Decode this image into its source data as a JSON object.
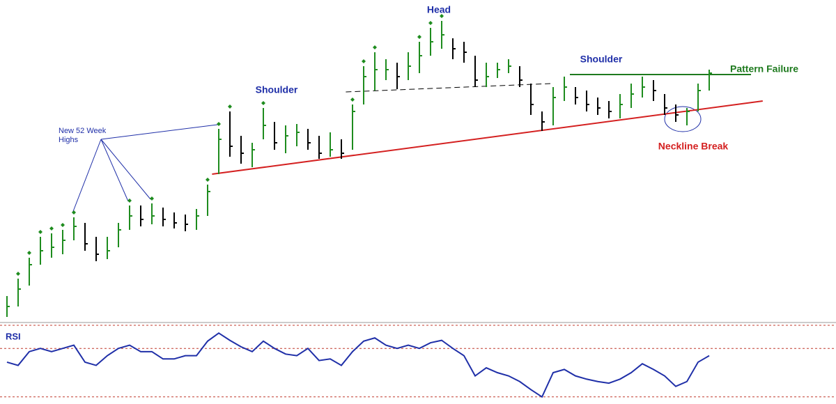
{
  "chart_data": {
    "type": "ohlc",
    "ylim": [
      0,
      460
    ],
    "high": [
      35,
      60,
      90,
      120,
      125,
      130,
      148,
      140,
      120,
      120,
      140,
      165,
      165,
      168,
      162,
      155,
      152,
      160,
      195,
      275,
      300,
      265,
      255,
      305,
      285,
      280,
      282,
      275,
      265,
      270,
      260,
      310,
      365,
      385,
      375,
      370,
      385,
      400,
      420,
      430,
      405,
      400,
      380,
      370,
      370,
      375,
      365,
      340,
      300,
      335,
      350,
      335,
      330,
      320,
      315,
      325,
      340,
      350,
      345,
      325,
      310,
      305,
      340,
      360
    ],
    "low": [
      5,
      20,
      50,
      80,
      90,
      95,
      115,
      100,
      85,
      88,
      105,
      130,
      135,
      138,
      135,
      132,
      128,
      130,
      150,
      210,
      235,
      225,
      220,
      260,
      245,
      240,
      250,
      245,
      232,
      235,
      232,
      245,
      310,
      330,
      345,
      332,
      345,
      355,
      380,
      390,
      375,
      370,
      335,
      335,
      348,
      355,
      335,
      295,
      272,
      280,
      315,
      310,
      300,
      295,
      290,
      290,
      305,
      320,
      315,
      295,
      285,
      280,
      300,
      330
    ],
    "close": [
      20,
      45,
      80,
      100,
      105,
      115,
      135,
      110,
      95,
      100,
      130,
      150,
      145,
      150,
      145,
      140,
      138,
      150,
      185,
      260,
      250,
      240,
      245,
      280,
      255,
      265,
      270,
      255,
      240,
      245,
      240,
      300,
      350,
      360,
      360,
      350,
      365,
      380,
      400,
      410,
      390,
      385,
      345,
      350,
      360,
      365,
      345,
      310,
      285,
      320,
      335,
      320,
      310,
      305,
      300,
      310,
      325,
      335,
      330,
      305,
      295,
      300,
      330,
      355
    ],
    "color": "#1e8c1e",
    "down_color": "#000000",
    "marker_color": "#1e8c1e",
    "neckline": {
      "x": [
        18.4,
        67.8
      ],
      "values": [
        210,
        315
      ],
      "color": "#d42020"
    },
    "resistance": {
      "x": [
        50.5,
        66.75
      ],
      "values": [
        353,
        353
      ],
      "color": "#1e7a1e"
    },
    "prior_neckline": {
      "x": [
        30.4,
        48.75
      ],
      "values": [
        328,
        340
      ],
      "color": "#000000"
    },
    "annotations": {
      "head": "Head",
      "left_shoulder": "Shoulder",
      "right_shoulder": "Shoulder",
      "pattern_failure": "Pattern Failure",
      "neckline_break": "Neckline Break",
      "highs": "New 52 Week Highs"
    },
    "rsi": {
      "label": "RSI",
      "values": [
        63,
        59,
        76,
        80,
        76,
        80,
        84,
        63,
        59,
        71,
        80,
        84,
        76,
        76,
        67,
        67,
        71,
        71,
        89,
        99,
        90,
        82,
        76,
        89,
        80,
        73,
        71,
        80,
        65,
        67,
        59,
        76,
        89,
        93,
        84,
        80,
        84,
        80,
        87,
        90,
        80,
        71,
        46,
        56,
        50,
        46,
        39,
        29,
        20,
        50,
        54,
        46,
        42,
        39,
        37,
        42,
        50,
        61,
        54,
        46,
        33,
        39,
        63,
        71
      ],
      "ylim": [
        0,
        100
      ],
      "levels": [
        20,
        80
      ],
      "color": "#1f2fa8",
      "level_color": "#c0392b"
    }
  }
}
